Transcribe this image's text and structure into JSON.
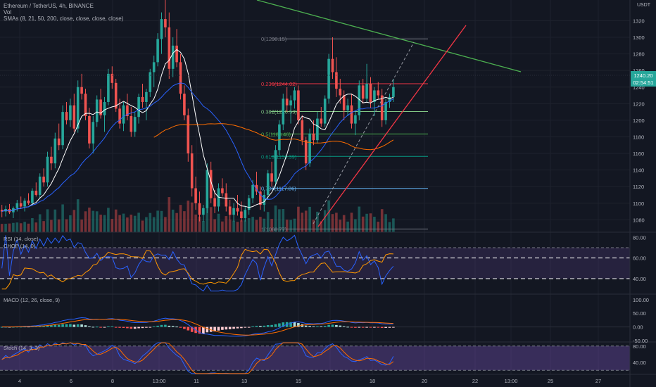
{
  "header": {
    "symbol_line": "Ethereum / TetherUS, 4h, BINANCE",
    "vol_label": "Vol",
    "sma_label": "SMAs (8, 21, 50, 200, close, close, close, close)",
    "unit": "USDT"
  },
  "price_badge": {
    "price": "1240.20",
    "countdown": "02:54:51"
  },
  "panes": {
    "rsi_label": "RSI (14, close)",
    "chop_label": "CHOP (14, 0)",
    "macd_label": "MACD (12, 26, close, 9)",
    "stoch_label": "Stoch (14, 3, 3)"
  },
  "colors": {
    "background": "#131722",
    "up": "#26a69a",
    "down": "#ef5350",
    "sma8": "#ffffff",
    "sma21": "#2962ff",
    "sma50": "#ff6d00",
    "resistance": "#4caf50",
    "support": "#f23645",
    "band": "#7e57c2"
  },
  "chart_data": [
    {
      "type": "candlestick",
      "title": "Ethereum / TetherUS, 4h, BINANCE",
      "ylim": [
        1065,
        1345
      ],
      "y_ticks": [
        1080,
        1100,
        1120,
        1140,
        1160,
        1180,
        1200,
        1220,
        1240,
        1260,
        1280,
        1300,
        1320
      ],
      "x_ticks": [
        "4",
        "6",
        "8",
        "13:00",
        "11",
        "13",
        "15",
        "18",
        "20",
        "22",
        "13:00",
        "25",
        "27"
      ],
      "candles": [
        [
          1092,
          1098,
          1083,
          1090
        ],
        [
          1090,
          1097,
          1084,
          1093
        ],
        [
          1093,
          1099,
          1087,
          1089
        ],
        [
          1089,
          1096,
          1082,
          1094
        ],
        [
          1094,
          1104,
          1090,
          1100
        ],
        [
          1100,
          1108,
          1094,
          1096
        ],
        [
          1096,
          1106,
          1090,
          1103
        ],
        [
          1103,
          1112,
          1098,
          1100
        ],
        [
          1100,
          1118,
          1097,
          1115
        ],
        [
          1115,
          1125,
          1108,
          1110
        ],
        [
          1110,
          1136,
          1106,
          1132
        ],
        [
          1132,
          1142,
          1120,
          1125
        ],
        [
          1125,
          1162,
          1120,
          1156
        ],
        [
          1156,
          1168,
          1140,
          1148
        ],
        [
          1148,
          1185,
          1142,
          1178
        ],
        [
          1178,
          1196,
          1164,
          1170
        ],
        [
          1170,
          1218,
          1165,
          1210
        ],
        [
          1210,
          1222,
          1195,
          1200
        ],
        [
          1200,
          1226,
          1192,
          1218
        ],
        [
          1218,
          1232,
          1186,
          1190
        ],
        [
          1190,
          1248,
          1185,
          1240
        ],
        [
          1240,
          1256,
          1225,
          1232
        ],
        [
          1232,
          1238,
          1200,
          1205
        ],
        [
          1205,
          1215,
          1166,
          1172
        ],
        [
          1172,
          1205,
          1160,
          1198
        ],
        [
          1198,
          1230,
          1192,
          1225
        ],
        [
          1225,
          1238,
          1202,
          1206
        ],
        [
          1206,
          1228,
          1186,
          1222
        ],
        [
          1222,
          1262,
          1218,
          1256
        ],
        [
          1256,
          1265,
          1238,
          1245
        ],
        [
          1245,
          1250,
          1210,
          1214
        ],
        [
          1214,
          1226,
          1190,
          1196
        ],
        [
          1196,
          1222,
          1187,
          1218
        ],
        [
          1218,
          1232,
          1200,
          1205
        ],
        [
          1205,
          1216,
          1180,
          1186
        ],
        [
          1186,
          1210,
          1180,
          1204
        ],
        [
          1204,
          1232,
          1196,
          1228
        ],
        [
          1228,
          1244,
          1215,
          1222
        ],
        [
          1222,
          1238,
          1200,
          1234
        ],
        [
          1234,
          1262,
          1228,
          1258
        ],
        [
          1258,
          1278,
          1240,
          1270
        ],
        [
          1270,
          1305,
          1265,
          1298
        ],
        [
          1298,
          1330,
          1280,
          1322
        ],
        [
          1322,
          1345,
          1300,
          1312
        ],
        [
          1312,
          1330,
          1250,
          1262
        ],
        [
          1262,
          1300,
          1252,
          1290
        ],
        [
          1290,
          1310,
          1264,
          1270
        ],
        [
          1270,
          1280,
          1225,
          1232
        ],
        [
          1232,
          1242,
          1200,
          1206
        ],
        [
          1206,
          1214,
          1150,
          1160
        ],
        [
          1160,
          1170,
          1108,
          1118
        ],
        [
          1118,
          1132,
          1092,
          1100
        ],
        [
          1100,
          1114,
          1078,
          1086
        ],
        [
          1086,
          1098,
          1078,
          1094
        ],
        [
          1094,
          1148,
          1088,
          1140
        ],
        [
          1140,
          1150,
          1100,
          1106
        ],
        [
          1106,
          1116,
          1088,
          1096
        ],
        [
          1096,
          1124,
          1090,
          1118
        ],
        [
          1118,
          1130,
          1108,
          1112
        ],
        [
          1112,
          1124,
          1090,
          1096
        ],
        [
          1096,
          1104,
          1080,
          1086
        ],
        [
          1086,
          1100,
          1078,
          1094
        ],
        [
          1094,
          1110,
          1085,
          1090
        ],
        [
          1090,
          1102,
          1078,
          1082
        ],
        [
          1082,
          1096,
          1078,
          1092
        ],
        [
          1092,
          1110,
          1086,
          1106
        ],
        [
          1106,
          1128,
          1100,
          1122
        ],
        [
          1122,
          1138,
          1110,
          1114
        ],
        [
          1114,
          1120,
          1092,
          1098
        ],
        [
          1098,
          1116,
          1090,
          1110
        ],
        [
          1110,
          1140,
          1104,
          1136
        ],
        [
          1136,
          1150,
          1120,
          1126
        ],
        [
          1126,
          1170,
          1120,
          1164
        ],
        [
          1164,
          1200,
          1158,
          1195
        ],
        [
          1195,
          1232,
          1188,
          1226
        ],
        [
          1226,
          1240,
          1210,
          1218
        ],
        [
          1218,
          1230,
          1196,
          1224
        ],
        [
          1224,
          1240,
          1214,
          1236
        ],
        [
          1236,
          1242,
          1195,
          1200
        ],
        [
          1200,
          1206,
          1170,
          1176
        ],
        [
          1176,
          1180,
          1140,
          1148
        ],
        [
          1148,
          1190,
          1144,
          1184
        ],
        [
          1184,
          1200,
          1170,
          1176
        ],
        [
          1176,
          1210,
          1172,
          1202
        ],
        [
          1202,
          1216,
          1192,
          1196
        ],
        [
          1196,
          1230,
          1192,
          1226
        ],
        [
          1226,
          1280,
          1220,
          1274
        ],
        [
          1274,
          1300,
          1250,
          1258
        ],
        [
          1258,
          1276,
          1228,
          1238
        ],
        [
          1238,
          1250,
          1220,
          1230
        ],
        [
          1230,
          1236,
          1200,
          1212
        ],
        [
          1212,
          1226,
          1205,
          1218
        ],
        [
          1218,
          1232,
          1190,
          1196
        ],
        [
          1196,
          1210,
          1182,
          1206
        ],
        [
          1206,
          1248,
          1200,
          1242
        ],
        [
          1242,
          1250,
          1220,
          1226
        ],
        [
          1226,
          1268,
          1222,
          1244
        ],
        [
          1244,
          1252,
          1215,
          1222
        ],
        [
          1222,
          1240,
          1205,
          1236
        ],
        [
          1236,
          1246,
          1226,
          1230
        ],
        [
          1230,
          1238,
          1192,
          1200
        ],
        [
          1200,
          1226,
          1195,
          1222
        ],
        [
          1222,
          1232,
          1215,
          1228
        ],
        [
          1228,
          1250,
          1222,
          1240
        ]
      ],
      "fib_levels": [
        {
          "ratio": "0",
          "price": 1298.15,
          "text": "0(1298.15)"
        },
        {
          "ratio": "0.236",
          "price": 1244.02,
          "text": "0.236(1244.02)"
        },
        {
          "ratio": "0.382",
          "price": 1210.53,
          "text": "0.382(1210.53)"
        },
        {
          "ratio": "0.5",
          "price": 1183.46,
          "text": "0.5(1183.46)"
        },
        {
          "ratio": "0.618",
          "price": 1156.39,
          "text": "0.618(1156.39)"
        },
        {
          "ratio": "0.786",
          "price": 1117.86,
          "text": "0.786(1117.86)"
        },
        {
          "ratio": "1",
          "price": 1068.77,
          "text": "1(1068.77)"
        }
      ]
    },
    {
      "type": "line",
      "title": "RSI (14, close)",
      "ylim": [
        25,
        85
      ],
      "y_ticks": [
        40,
        60,
        80
      ],
      "bands": [
        40,
        60,
        70
      ]
    },
    {
      "type": "bar",
      "title": "MACD (12, 26, close, 9)",
      "ylim": [
        -55,
        120
      ],
      "y_ticks": [
        -50,
        0,
        50,
        100
      ]
    },
    {
      "type": "line",
      "title": "Stoch (14, 3, 3)",
      "ylim": [
        10,
        90
      ],
      "y_ticks": [
        40,
        80
      ],
      "bands": [
        20,
        80
      ]
    }
  ]
}
